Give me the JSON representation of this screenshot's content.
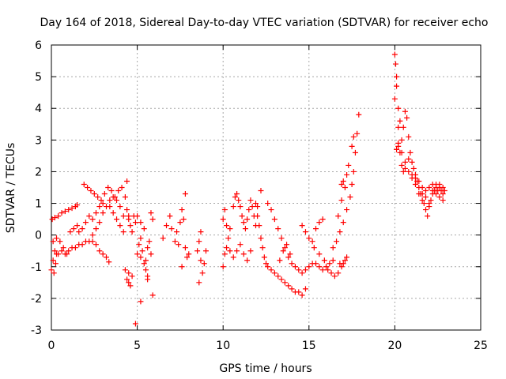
{
  "chart_data": {
    "type": "scatter",
    "title": "Day 164 of 2018, Sidereal Day-to-day VTEC variation (SDTVAR) for receiver echo",
    "xlabel": "GPS time / hours",
    "ylabel": "SDTVAR / TECUs",
    "xlim": [
      0,
      25
    ],
    "ylim": [
      -3,
      6
    ],
    "xticks": [
      "0",
      "5",
      "10",
      "15",
      "20",
      "25"
    ],
    "yticks": [
      "-3",
      "-2",
      "-1",
      "0",
      "1",
      "2",
      "3",
      "4",
      "5",
      "6"
    ],
    "grid": true,
    "marker": "+",
    "marker_color": "#ff0000",
    "series": [
      {
        "name": "SDTVAR",
        "points": [
          [
            0.0,
            -1.1
          ],
          [
            0.1,
            -0.8
          ],
          [
            0.2,
            -0.5
          ],
          [
            0.3,
            -0.6
          ],
          [
            0.4,
            -0.6
          ],
          [
            0.6,
            -0.5
          ],
          [
            0.8,
            -0.6
          ],
          [
            1.0,
            -0.5
          ],
          [
            1.2,
            -0.4
          ],
          [
            1.4,
            -0.4
          ],
          [
            1.6,
            -0.3
          ],
          [
            1.8,
            -0.3
          ],
          [
            2.0,
            -0.2
          ],
          [
            2.2,
            -0.2
          ],
          [
            2.4,
            0.0
          ],
          [
            2.6,
            0.2
          ],
          [
            2.8,
            0.4
          ],
          [
            3.0,
            0.7
          ],
          [
            3.2,
            0.9
          ],
          [
            3.4,
            1.1
          ],
          [
            3.6,
            1.2
          ],
          [
            3.8,
            1.1
          ],
          [
            4.0,
            0.9
          ],
          [
            4.2,
            0.6
          ],
          [
            0.05,
            0.5
          ],
          [
            0.2,
            0.55
          ],
          [
            0.4,
            0.6
          ],
          [
            0.6,
            0.7
          ],
          [
            0.8,
            0.75
          ],
          [
            1.0,
            0.8
          ],
          [
            1.2,
            0.85
          ],
          [
            1.4,
            0.9
          ],
          [
            1.5,
            0.95
          ],
          [
            0.1,
            -0.2
          ],
          [
            0.3,
            -0.1
          ],
          [
            0.5,
            -0.2
          ],
          [
            0.7,
            -0.4
          ],
          [
            0.9,
            -0.6
          ],
          [
            0.15,
            -1.2
          ],
          [
            0.25,
            -0.9
          ],
          [
            1.9,
            1.6
          ],
          [
            2.1,
            1.5
          ],
          [
            2.3,
            1.4
          ],
          [
            2.5,
            1.3
          ],
          [
            2.7,
            1.2
          ],
          [
            2.9,
            1.1
          ],
          [
            3.1,
            1.3
          ],
          [
            3.3,
            1.5
          ],
          [
            3.5,
            1.4
          ],
          [
            3.7,
            1.2
          ],
          [
            1.1,
            0.1
          ],
          [
            1.3,
            0.2
          ],
          [
            1.5,
            0.3
          ],
          [
            1.6,
            0.1
          ],
          [
            1.8,
            0.2
          ],
          [
            2.0,
            0.4
          ],
          [
            2.2,
            0.6
          ],
          [
            2.4,
            0.5
          ],
          [
            2.6,
            0.7
          ],
          [
            2.8,
            0.9
          ],
          [
            3.0,
            1.0
          ],
          [
            2.4,
            -0.2
          ],
          [
            2.6,
            -0.3
          ],
          [
            2.8,
            -0.5
          ],
          [
            3.0,
            -0.6
          ],
          [
            3.2,
            -0.7
          ],
          [
            3.35,
            -0.85
          ],
          [
            3.4,
            0.9
          ],
          [
            3.6,
            0.7
          ],
          [
            3.8,
            0.5
          ],
          [
            4.0,
            0.3
          ],
          [
            4.2,
            0.1
          ],
          [
            3.9,
            1.4
          ],
          [
            4.1,
            1.5
          ],
          [
            4.3,
            1.2
          ],
          [
            4.4,
            0.8
          ],
          [
            4.5,
            0.6
          ],
          [
            4.4,
            1.7
          ],
          [
            4.5,
            0.5
          ],
          [
            4.6,
            0.3
          ],
          [
            4.7,
            0.1
          ],
          [
            4.8,
            0.6
          ],
          [
            4.9,
            0.4
          ],
          [
            4.4,
            -1.4
          ],
          [
            4.5,
            -1.2
          ],
          [
            4.6,
            -1.6
          ],
          [
            4.5,
            -1.5
          ],
          [
            4.7,
            -1.3
          ],
          [
            4.3,
            -1.1
          ],
          [
            5.0,
            -0.6
          ],
          [
            5.1,
            -0.3
          ],
          [
            5.2,
            -0.7
          ],
          [
            5.3,
            -0.5
          ],
          [
            5.4,
            -0.9
          ],
          [
            5.5,
            -0.8
          ],
          [
            5.6,
            -0.4
          ],
          [
            5.7,
            -0.2
          ],
          [
            5.8,
            -0.6
          ],
          [
            5.5,
            -1.1
          ],
          [
            5.6,
            -1.3
          ],
          [
            5.2,
            -0.1
          ],
          [
            5.0,
            0.6
          ],
          [
            5.2,
            0.4
          ],
          [
            5.4,
            0.2
          ],
          [
            5.9,
            0.5
          ],
          [
            5.8,
            0.7
          ],
          [
            4.9,
            -2.8
          ],
          [
            5.2,
            -2.1
          ],
          [
            5.9,
            -1.9
          ],
          [
            5.6,
            -1.4
          ],
          [
            6.5,
            -0.1
          ],
          [
            6.7,
            0.3
          ],
          [
            6.9,
            0.6
          ],
          [
            7.0,
            0.2
          ],
          [
            7.2,
            -0.2
          ],
          [
            7.3,
            0.1
          ],
          [
            7.5,
            0.4
          ],
          [
            7.6,
            0.8
          ],
          [
            7.7,
            0.5
          ],
          [
            7.8,
            -0.4
          ],
          [
            7.9,
            -0.7
          ],
          [
            8.0,
            -0.6
          ],
          [
            7.4,
            -0.3
          ],
          [
            7.6,
            -1.0
          ],
          [
            7.8,
            1.3
          ],
          [
            8.5,
            -0.5
          ],
          [
            8.6,
            -0.2
          ],
          [
            8.7,
            -0.8
          ],
          [
            8.8,
            -1.2
          ],
          [
            8.9,
            -0.9
          ],
          [
            9.0,
            -0.5
          ],
          [
            8.6,
            -1.5
          ],
          [
            8.7,
            0.1
          ],
          [
            10.0,
            0.5
          ],
          [
            10.1,
            0.8
          ],
          [
            10.2,
            0.3
          ],
          [
            10.3,
            -0.1
          ],
          [
            10.4,
            0.2
          ],
          [
            10.6,
            0.9
          ],
          [
            10.7,
            1.2
          ],
          [
            10.8,
            1.3
          ],
          [
            10.9,
            1.1
          ],
          [
            11.0,
            0.9
          ],
          [
            11.1,
            0.6
          ],
          [
            11.2,
            0.4
          ],
          [
            11.3,
            0.2
          ],
          [
            11.4,
            0.5
          ],
          [
            11.5,
            0.8
          ],
          [
            11.6,
            1.1
          ],
          [
            11.7,
            0.9
          ],
          [
            11.8,
            0.6
          ],
          [
            11.9,
            0.3
          ],
          [
            10.0,
            -1.0
          ],
          [
            10.1,
            -0.6
          ],
          [
            10.2,
            -0.4
          ],
          [
            10.4,
            -0.5
          ],
          [
            10.6,
            -0.7
          ],
          [
            10.8,
            -0.5
          ],
          [
            11.0,
            -0.3
          ],
          [
            11.2,
            -0.6
          ],
          [
            11.4,
            -0.8
          ],
          [
            11.6,
            -0.5
          ],
          [
            12.0,
            0.6
          ],
          [
            12.1,
            0.3
          ],
          [
            12.2,
            -0.1
          ],
          [
            12.3,
            -0.4
          ],
          [
            12.4,
            -0.7
          ],
          [
            12.5,
            -0.9
          ],
          [
            12.6,
            -1.0
          ],
          [
            12.8,
            -1.1
          ],
          [
            13.0,
            -1.2
          ],
          [
            13.2,
            -1.3
          ],
          [
            13.4,
            -1.4
          ],
          [
            13.6,
            -1.5
          ],
          [
            13.8,
            -1.6
          ],
          [
            14.0,
            -1.7
          ],
          [
            14.2,
            -1.8
          ],
          [
            14.4,
            -1.8
          ],
          [
            14.6,
            -1.9
          ],
          [
            14.8,
            -1.7
          ],
          [
            12.6,
            1.0
          ],
          [
            12.8,
            0.8
          ],
          [
            13.0,
            0.5
          ],
          [
            13.2,
            0.2
          ],
          [
            13.4,
            -0.1
          ],
          [
            13.6,
            -0.4
          ],
          [
            13.8,
            -0.7
          ],
          [
            14.0,
            -0.9
          ],
          [
            14.2,
            -1.0
          ],
          [
            14.4,
            -1.1
          ],
          [
            14.6,
            -1.2
          ],
          [
            14.8,
            -1.1
          ],
          [
            15.0,
            -1.0
          ],
          [
            15.2,
            -0.9
          ],
          [
            15.4,
            -0.9
          ],
          [
            15.6,
            -1.0
          ],
          [
            15.8,
            -1.1
          ],
          [
            16.0,
            -1.0
          ],
          [
            16.2,
            -0.9
          ],
          [
            16.4,
            -0.8
          ],
          [
            12.2,
            1.4
          ],
          [
            12.0,
            0.9
          ],
          [
            11.9,
            1.0
          ],
          [
            13.3,
            -0.8
          ],
          [
            13.5,
            -0.5
          ],
          [
            13.7,
            -0.3
          ],
          [
            13.9,
            -0.6
          ],
          [
            14.6,
            0.3
          ],
          [
            14.8,
            0.1
          ],
          [
            15.0,
            -0.1
          ],
          [
            15.2,
            -0.2
          ],
          [
            15.4,
            0.2
          ],
          [
            15.6,
            0.4
          ],
          [
            15.8,
            0.5
          ],
          [
            15.3,
            -0.4
          ],
          [
            15.6,
            -0.6
          ],
          [
            15.9,
            -0.8
          ],
          [
            16.1,
            -1.1
          ],
          [
            16.3,
            -1.2
          ],
          [
            16.5,
            -1.3
          ],
          [
            16.7,
            -1.2
          ],
          [
            16.9,
            -1.0
          ],
          [
            16.4,
            -0.4
          ],
          [
            16.6,
            -0.2
          ],
          [
            16.8,
            0.1
          ],
          [
            17.0,
            0.4
          ],
          [
            17.2,
            0.8
          ],
          [
            17.4,
            1.2
          ],
          [
            17.5,
            1.6
          ],
          [
            17.6,
            2.0
          ],
          [
            17.7,
            2.6
          ],
          [
            17.8,
            3.2
          ],
          [
            17.9,
            3.8
          ],
          [
            16.7,
            0.6
          ],
          [
            16.9,
            1.1
          ],
          [
            17.1,
            1.5
          ],
          [
            17.2,
            1.9
          ],
          [
            17.3,
            2.2
          ],
          [
            17.5,
            2.8
          ],
          [
            17.6,
            3.1
          ],
          [
            16.9,
            1.6
          ],
          [
            17.0,
            1.7
          ],
          [
            17.0,
            -0.9
          ],
          [
            17.1,
            -0.8
          ],
          [
            17.2,
            -0.7
          ],
          [
            16.8,
            -0.9
          ],
          [
            20.0,
            5.7
          ],
          [
            20.05,
            5.4
          ],
          [
            20.1,
            5.0
          ],
          [
            20.1,
            4.7
          ],
          [
            20.2,
            4.0
          ],
          [
            20.0,
            4.3
          ],
          [
            20.3,
            3.6
          ],
          [
            20.2,
            3.4
          ],
          [
            20.1,
            2.7
          ],
          [
            20.2,
            2.8
          ],
          [
            20.3,
            2.6
          ],
          [
            20.4,
            3.0
          ],
          [
            20.5,
            3.4
          ],
          [
            20.6,
            3.9
          ],
          [
            20.7,
            3.7
          ],
          [
            20.8,
            3.1
          ],
          [
            20.9,
            2.6
          ],
          [
            21.0,
            2.3
          ],
          [
            21.1,
            2.1
          ],
          [
            21.2,
            1.9
          ],
          [
            21.3,
            1.7
          ],
          [
            21.4,
            1.5
          ],
          [
            21.5,
            1.3
          ],
          [
            21.6,
            1.1
          ],
          [
            21.7,
            1.0
          ],
          [
            21.8,
            0.8
          ],
          [
            21.9,
            0.6
          ],
          [
            22.0,
            0.9
          ],
          [
            22.1,
            1.1
          ],
          [
            22.2,
            1.3
          ],
          [
            22.3,
            1.4
          ],
          [
            22.4,
            1.5
          ],
          [
            22.5,
            1.4
          ],
          [
            22.6,
            1.5
          ],
          [
            22.7,
            1.4
          ],
          [
            22.8,
            1.3
          ],
          [
            22.9,
            1.4
          ],
          [
            20.4,
            2.2
          ],
          [
            20.5,
            2.0
          ],
          [
            20.6,
            2.1
          ],
          [
            20.8,
            2.4
          ],
          [
            21.0,
            1.8
          ],
          [
            21.2,
            1.6
          ],
          [
            21.4,
            1.3
          ],
          [
            21.6,
            1.5
          ],
          [
            21.8,
            1.2
          ],
          [
            22.0,
            1.0
          ],
          [
            22.2,
            1.4
          ],
          [
            22.4,
            1.6
          ],
          [
            22.6,
            1.2
          ],
          [
            22.8,
            1.1
          ],
          [
            20.2,
            2.9
          ],
          [
            20.4,
            2.6
          ],
          [
            20.6,
            2.3
          ],
          [
            20.8,
            2.0
          ],
          [
            21.0,
            1.9
          ],
          [
            21.2,
            1.8
          ],
          [
            21.4,
            1.7
          ],
          [
            21.6,
            1.3
          ],
          [
            21.8,
            1.4
          ],
          [
            22.0,
            1.5
          ],
          [
            22.2,
            1.6
          ],
          [
            22.4,
            1.3
          ],
          [
            22.6,
            1.6
          ],
          [
            22.8,
            1.5
          ]
        ]
      }
    ]
  }
}
